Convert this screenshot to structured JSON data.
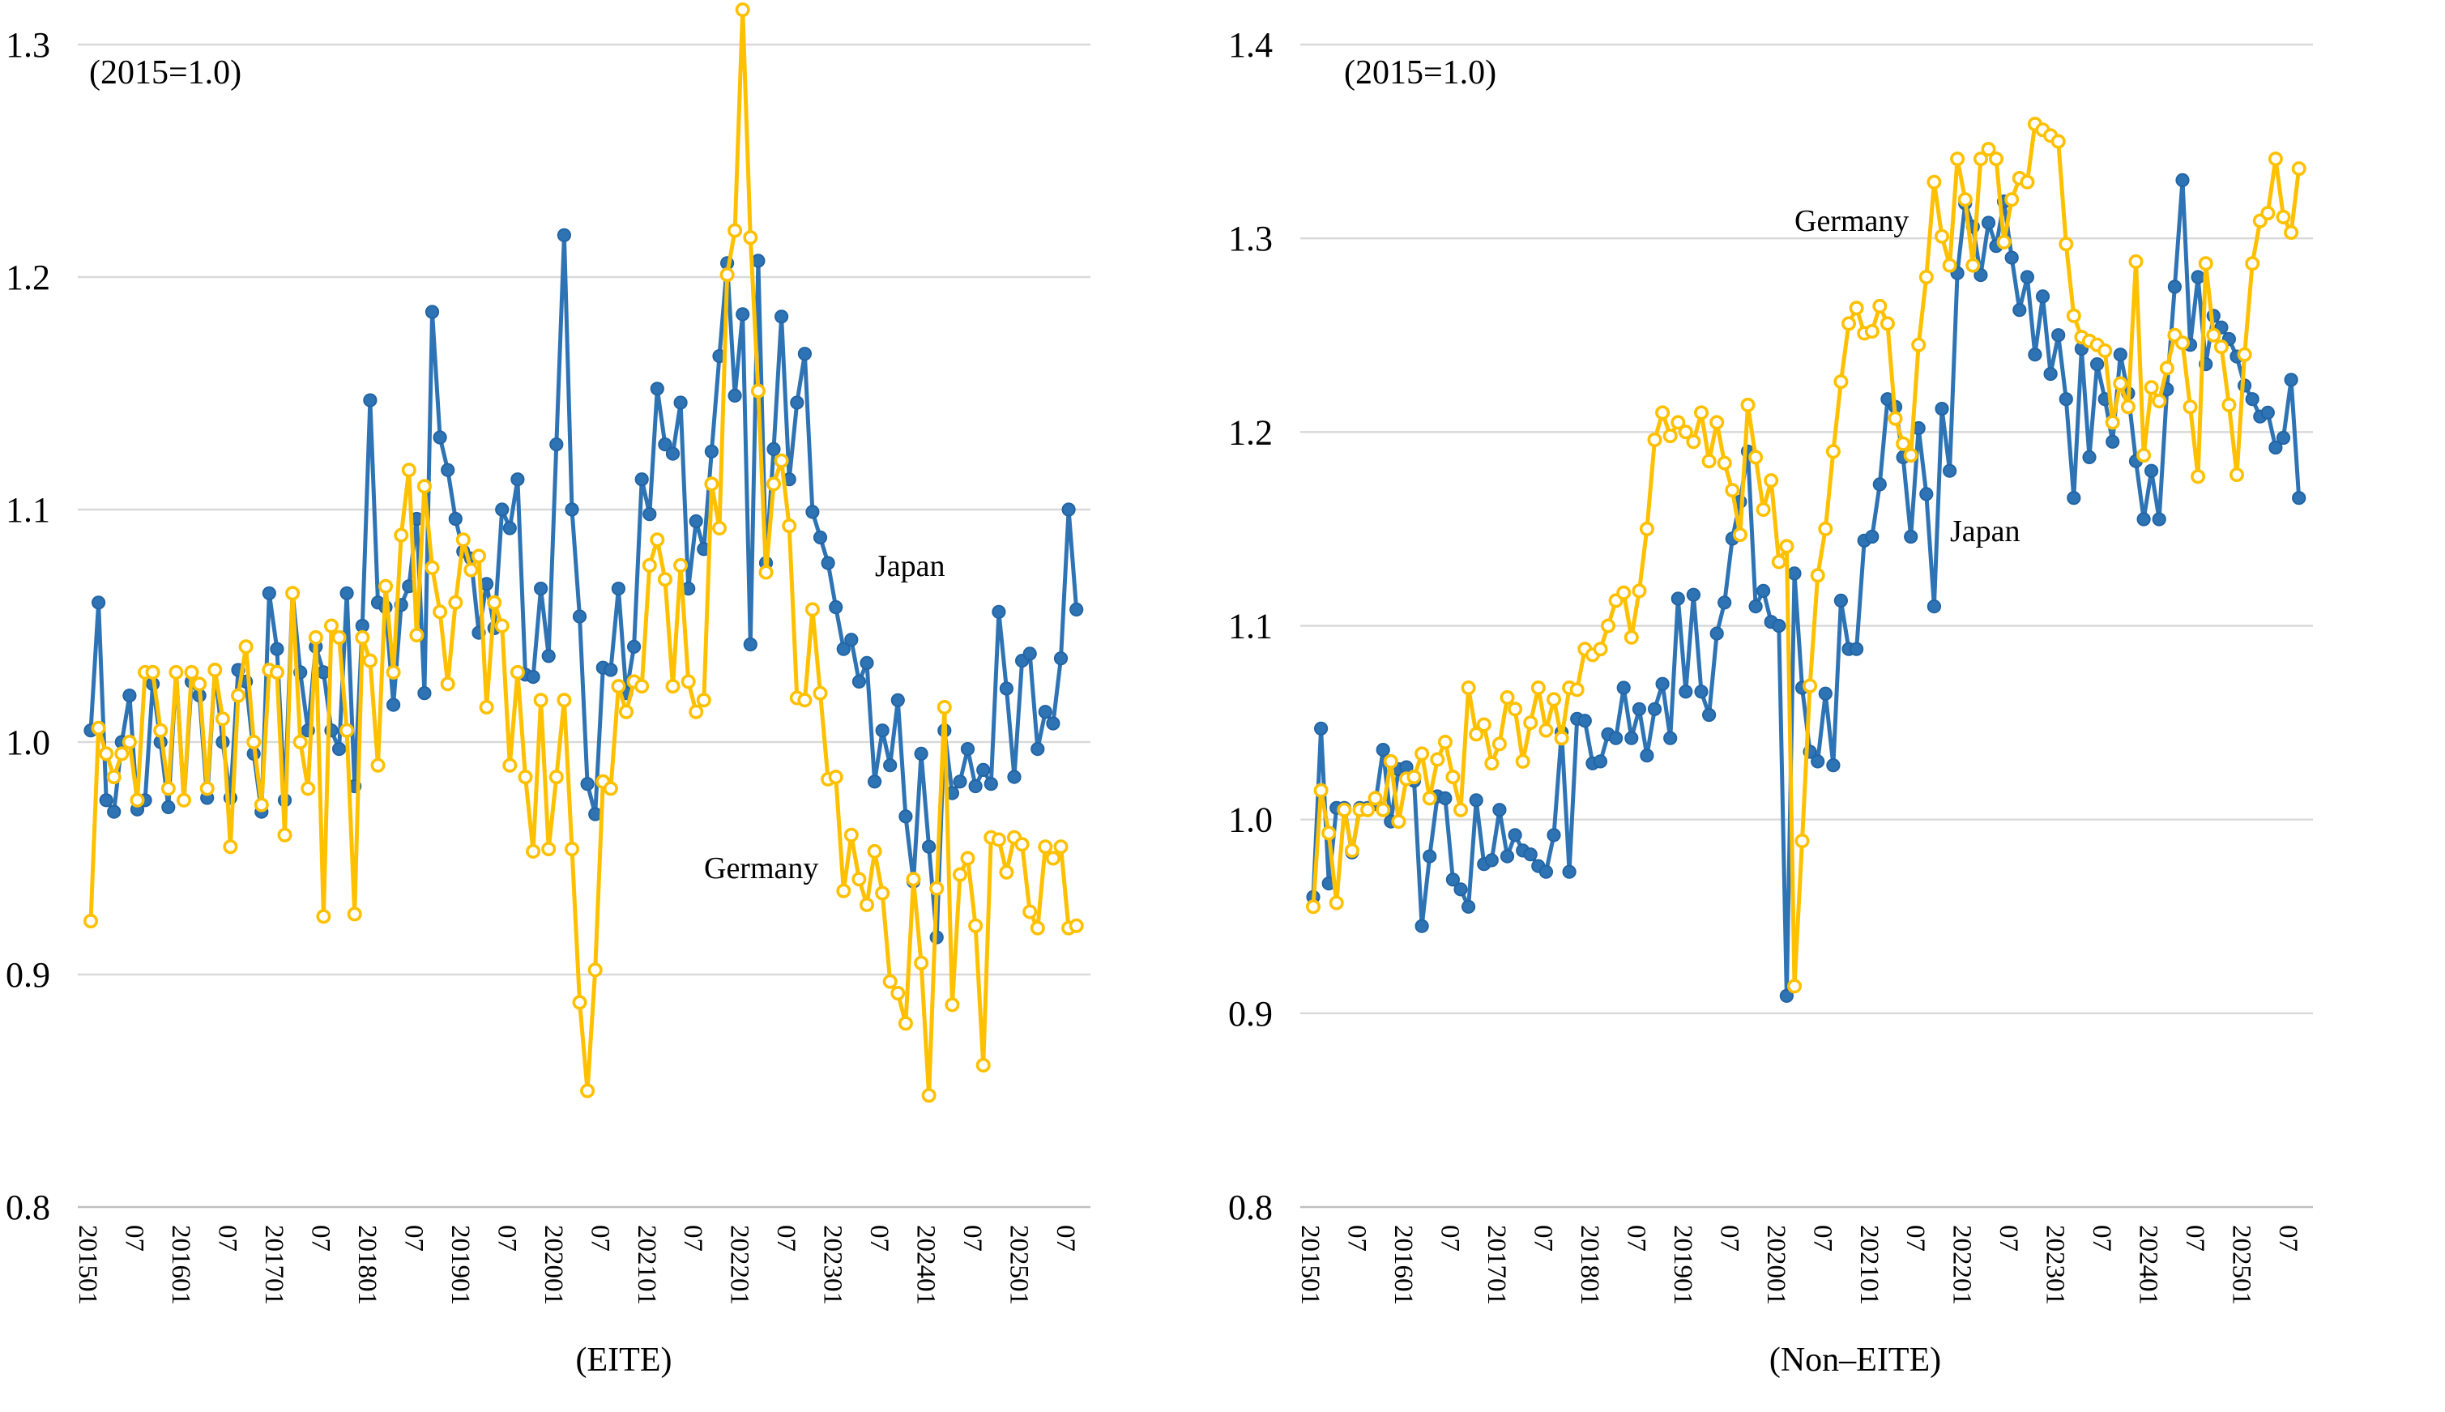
{
  "figure": {
    "background": "#ffffff",
    "gridline_color": "#d9d9d9",
    "axisline_color": "#bfbfbf",
    "text_color": "#000000"
  },
  "chart_data": [
    {
      "type": "line",
      "title": "(EITE)",
      "annotation": "(2015=1.0)",
      "ylim": [
        0.8,
        1.3
      ],
      "ytick_labels": [
        "1.3",
        "1.2",
        "1.1",
        "1.0",
        "0.9",
        "0.8"
      ],
      "yticks": [
        1.3,
        1.2,
        1.1,
        1.0,
        0.9,
        0.8
      ],
      "grid": true,
      "legend_position": "inline-labels",
      "x_start": "201501",
      "x_freq": "monthly",
      "x_tick_step_months": 6,
      "x_tick_labels": [
        "201501",
        "07",
        "201601",
        "07",
        "201701",
        "07",
        "201801",
        "07",
        "201901",
        "07",
        "202001",
        "07",
        "202101",
        "07",
        "202201",
        "07",
        "202301",
        "07",
        "202401",
        "07",
        "202501",
        "07"
      ],
      "series": [
        {
          "name": "Japan",
          "color": "#2e74b5",
          "marker": "filled-circle",
          "values": [
            1.005,
            1.06,
            0.975,
            0.97,
            1.0,
            1.02,
            0.971,
            0.975,
            1.025,
            1.0,
            0.972,
            1.03,
            0.975,
            1.026,
            1.02,
            0.976,
            1.031,
            1.0,
            0.976,
            1.031,
            1.026,
            0.995,
            0.97,
            1.064,
            1.04,
            0.975,
            1.064,
            1.03,
            1.005,
            1.041,
            1.03,
            1.005,
            0.997,
            1.064,
            0.981,
            1.05,
            1.147,
            1.06,
            1.058,
            1.016,
            1.059,
            1.067,
            1.096,
            1.021,
            1.185,
            1.131,
            1.117,
            1.096,
            1.082,
            1.079,
            1.047,
            1.068,
            1.049,
            1.1,
            1.092,
            1.113,
            1.029,
            1.028,
            1.066,
            1.037,
            1.128,
            1.218,
            1.1,
            1.054,
            0.982,
            0.969,
            1.032,
            1.031,
            1.066,
            1.021,
            1.041,
            1.113,
            1.098,
            1.152,
            1.128,
            1.124,
            1.146,
            1.066,
            1.095,
            1.083,
            1.125,
            1.166,
            1.206,
            1.149,
            1.184,
            1.042,
            1.207,
            1.077,
            1.126,
            1.183,
            1.113,
            1.146,
            1.167,
            1.099,
            1.088,
            1.077,
            1.058,
            1.04,
            1.044,
            1.026,
            1.034,
            0.983,
            1.005,
            0.99,
            1.018,
            0.968,
            0.94,
            0.995,
            0.955,
            0.916,
            1.005,
            0.978,
            0.983,
            0.997,
            0.981,
            0.988,
            0.982,
            1.056,
            1.023,
            0.985,
            1.035,
            1.038,
            0.997,
            1.013,
            1.008,
            1.036,
            1.1,
            1.057
          ]
        },
        {
          "name": "Germany",
          "color": "#ffc000",
          "marker": "open-circle",
          "values": [
            0.923,
            1.006,
            0.995,
            0.985,
            0.995,
            1.0,
            0.975,
            1.03,
            1.03,
            1.005,
            0.98,
            1.03,
            0.975,
            1.03,
            1.025,
            0.98,
            1.031,
            1.01,
            0.955,
            1.02,
            1.041,
            1.0,
            0.973,
            1.031,
            1.03,
            0.96,
            1.064,
            1.0,
            0.98,
            1.045,
            0.925,
            1.05,
            1.045,
            1.005,
            0.926,
            1.045,
            1.035,
            0.99,
            1.067,
            1.03,
            1.089,
            1.117,
            1.046,
            1.11,
            1.075,
            1.056,
            1.025,
            1.06,
            1.087,
            1.074,
            1.08,
            1.015,
            1.06,
            1.05,
            0.99,
            1.03,
            0.985,
            0.953,
            1.018,
            0.954,
            0.985,
            1.018,
            0.954,
            0.888,
            0.85,
            0.902,
            0.983,
            0.98,
            1.024,
            1.013,
            1.026,
            1.024,
            1.076,
            1.087,
            1.07,
            1.024,
            1.076,
            1.026,
            1.013,
            1.018,
            1.111,
            1.092,
            1.201,
            1.22,
            1.315,
            1.217,
            1.151,
            1.073,
            1.111,
            1.121,
            1.093,
            1.019,
            1.018,
            1.057,
            1.021,
            0.984,
            0.985,
            0.936,
            0.96,
            0.941,
            0.93,
            0.953,
            0.935,
            0.897,
            0.892,
            0.879,
            0.941,
            0.905,
            0.848,
            0.937,
            1.015,
            0.887,
            0.943,
            0.95,
            0.921,
            0.861,
            0.959,
            0.958,
            0.944,
            0.959,
            0.956,
            0.927,
            0.92,
            0.955,
            0.95,
            0.955,
            0.92,
            0.921
          ]
        }
      ],
      "series_labels": [
        {
          "text": "Japan",
          "month_index": 101,
          "value": 1.075
        },
        {
          "text": "Germany",
          "month_index": 79,
          "value": 0.945
        }
      ]
    },
    {
      "type": "line",
      "title": "(Non–EITE)",
      "annotation": "(2015=1.0)",
      "ylim": [
        0.8,
        1.4
      ],
      "ytick_labels": [
        "1.4",
        "1.3",
        "1.2",
        "1.1",
        "1.0",
        "0.9",
        "0.8"
      ],
      "yticks": [
        1.4,
        1.3,
        1.2,
        1.1,
        1.0,
        0.9,
        0.8
      ],
      "grid": true,
      "legend_position": "inline-labels",
      "x_start": "201501",
      "x_freq": "monthly",
      "x_tick_step_months": 6,
      "x_tick_labels": [
        "201501",
        "07",
        "201601",
        "07",
        "201701",
        "07",
        "201801",
        "07",
        "201901",
        "07",
        "202001",
        "07",
        "202101",
        "07",
        "202201",
        "07",
        "202301",
        "07",
        "202401",
        "07",
        "202501",
        "07"
      ],
      "series": [
        {
          "name": "Japan",
          "color": "#2e74b5",
          "marker": "filled-circle",
          "values": [
            0.96,
            1.047,
            0.967,
            1.006,
            1.006,
            0.983,
            1.006,
            1.006,
            1.008,
            1.036,
            0.999,
            1.026,
            1.027,
            1.02,
            0.945,
            0.981,
            1.012,
            1.011,
            0.969,
            0.964,
            0.955,
            1.01,
            0.977,
            0.979,
            1.005,
            0.981,
            0.992,
            0.984,
            0.982,
            0.976,
            0.973,
            0.992,
            1.045,
            0.973,
            1.052,
            1.051,
            1.029,
            1.03,
            1.044,
            1.042,
            1.068,
            1.042,
            1.057,
            1.033,
            1.057,
            1.07,
            1.042,
            1.114,
            1.066,
            1.116,
            1.066,
            1.054,
            1.096,
            1.112,
            1.145,
            1.164,
            1.19,
            1.11,
            1.118,
            1.102,
            1.1,
            0.909,
            1.127,
            1.068,
            1.035,
            1.03,
            1.065,
            1.028,
            1.113,
            1.088,
            1.088,
            1.144,
            1.146,
            1.173,
            1.217,
            1.213,
            1.187,
            1.146,
            1.202,
            1.168,
            1.11,
            1.212,
            1.18,
            1.282,
            1.318,
            1.306,
            1.281,
            1.308,
            1.296,
            1.319,
            1.29,
            1.263,
            1.28,
            1.24,
            1.27,
            1.23,
            1.25,
            1.217,
            1.166,
            1.243,
            1.187,
            1.235,
            1.217,
            1.195,
            1.24,
            1.22,
            1.185,
            1.155,
            1.18,
            1.155,
            1.222,
            1.275,
            1.33,
            1.245,
            1.28,
            1.235,
            1.26,
            1.254,
            1.248,
            1.239,
            1.224,
            1.217,
            1.208,
            1.21,
            1.192,
            1.197,
            1.227,
            1.166
          ]
        },
        {
          "name": "Germany",
          "color": "#ffc000",
          "marker": "open-circle",
          "values": [
            0.955,
            1.015,
            0.993,
            0.957,
            1.005,
            0.984,
            1.005,
            1.005,
            1.011,
            1.005,
            1.03,
            0.999,
            1.021,
            1.022,
            1.034,
            1.011,
            1.031,
            1.04,
            1.022,
            1.005,
            1.068,
            1.044,
            1.049,
            1.029,
            1.039,
            1.063,
            1.057,
            1.03,
            1.05,
            1.068,
            1.046,
            1.062,
            1.042,
            1.068,
            1.067,
            1.088,
            1.085,
            1.088,
            1.1,
            1.113,
            1.117,
            1.094,
            1.118,
            1.15,
            1.196,
            1.21,
            1.198,
            1.205,
            1.2,
            1.195,
            1.21,
            1.185,
            1.205,
            1.184,
            1.17,
            1.147,
            1.214,
            1.187,
            1.16,
            1.175,
            1.133,
            1.141,
            0.914,
            0.989,
            1.069,
            1.126,
            1.15,
            1.19,
            1.226,
            1.256,
            1.264,
            1.251,
            1.252,
            1.265,
            1.256,
            1.207,
            1.194,
            1.188,
            1.245,
            1.28,
            1.329,
            1.301,
            1.286,
            1.341,
            1.32,
            1.286,
            1.341,
            1.346,
            1.341,
            1.298,
            1.32,
            1.331,
            1.329,
            1.359,
            1.356,
            1.353,
            1.35,
            1.297,
            1.26,
            1.249,
            1.247,
            1.245,
            1.242,
            1.205,
            1.225,
            1.213,
            1.288,
            1.188,
            1.223,
            1.216,
            1.233,
            1.25,
            1.246,
            1.213,
            1.177,
            1.287,
            1.25,
            1.244,
            1.214,
            1.178,
            1.24,
            1.287,
            1.309,
            1.313,
            1.341,
            1.311,
            1.303,
            1.336
          ]
        }
      ],
      "series_labels": [
        {
          "text": "Germany",
          "month_index": 62,
          "value": 1.308
        },
        {
          "text": "Japan",
          "month_index": 82,
          "value": 1.148
        }
      ]
    }
  ]
}
